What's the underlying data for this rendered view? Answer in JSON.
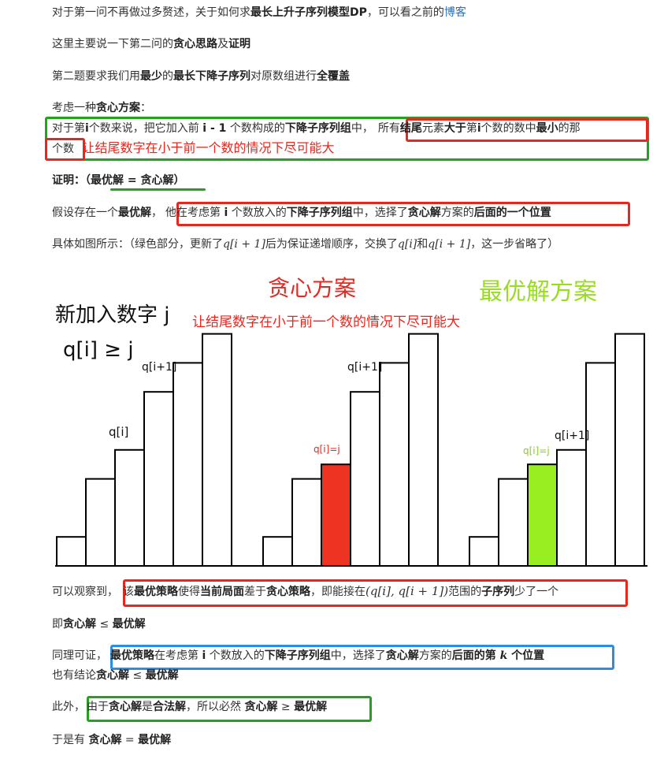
{
  "l1": {
    "a": "对于第一问不再做过多赘述，关于如何求",
    "b": "最长上升子序列模型DP",
    "c": "，可以看之前的",
    "link": "博客"
  },
  "l2": {
    "a": "这里主要说一下第二问的",
    "b": "贪心思路",
    "c": "及",
    "d": "证明"
  },
  "l3": {
    "a": "第二题要求我们用",
    "b": "最少",
    "c": "的",
    "d": "最长下降子序列",
    "e": "对原数组进行",
    "f": "全覆盖"
  },
  "l4": {
    "a": "考虑一种",
    "b": "贪心方案",
    "c": "："
  },
  "l5": {
    "a": "对于第",
    "b": "i",
    "c": "个数来说，把它加入前 ",
    "d": "i - 1",
    "e": " 个数构成的",
    "f": "下降子序列组",
    "g": "中，",
    "h": "所有",
    "i": "结尾",
    "j": "元素",
    "k": "大于",
    "l": "第",
    "m": "i",
    "n": "个数的数中",
    "o": "最小",
    "p": "的那"
  },
  "l6": {
    "a": "个数",
    "note": "让结尾数字在小于前一个数的情况下尽可能大"
  },
  "l7": {
    "a": "证明：（最优解 = ",
    "b": "贪心解",
    "c": "）"
  },
  "l8": {
    "a": "假设存在一个",
    "b": "最优解",
    "c": "，",
    "d": "他在考虑第 ",
    "e": "i",
    "f": " 个数放入的",
    "g": "下降子序列组",
    "h": "中，选择了",
    "i": "贪心解",
    "j": "方案的",
    "k": "后面的一个位置"
  },
  "l9": {
    "a": "具体如图所示：（绿色部分，更新了",
    "m1": "q[i + 1]",
    "b": "后为保证递增顺序，交换了",
    "m2": "q[i]",
    "c": "和",
    "m3": "q[i + 1]",
    "d": "，这一步省略了）"
  },
  "figure": {
    "title_greedy": "贪心方案",
    "title_optimal": "最优解方案",
    "subtitle": "让结尾数字在小于前一个数的情况下尽可能大",
    "left_note1": "新加入数字 j",
    "left_note2": "q[i] ≥ j",
    "g1_label_qi": "q[i]",
    "g1_label_qi1": "q[i+1]",
    "g2_label_qij": "q[i]=j",
    "g2_label_qi1": "q[i+1]",
    "g3_label_qij": "q[i]=j",
    "g3_label_qi1": "q[i+1]",
    "colors": {
      "greedy": "#ee3322",
      "optimal": "#99ee22"
    },
    "groups": [
      {
        "heights": [
          1,
          3,
          4,
          6,
          7,
          8
        ],
        "highlight": -1
      },
      {
        "heights": [
          1,
          3,
          3.5,
          6,
          7,
          8
        ],
        "highlight": 2
      },
      {
        "heights": [
          1,
          3,
          3.5,
          4,
          7,
          8
        ],
        "highlight": 2
      }
    ]
  },
  "l10": {
    "a": "可以观察到，",
    "b": "该",
    "c": "最优策略",
    "d": "使得",
    "e": "当前局面",
    "f": "差于",
    "g": "贪心策略",
    "h": "，即能接在",
    "m": "(q[i], q[i + 1])",
    "i": "范围的",
    "j": "子序列",
    "k": "少了一个"
  },
  "l11": {
    "a": "即",
    "b": "贪心解",
    "c": " ≤ ",
    "d": "最优解"
  },
  "l12": {
    "a": "同理可证，",
    "b": "最优策略",
    "c": "在考虑第 ",
    "d": "i",
    "e": " 个数放入的",
    "f": "下降子序列组",
    "g": "中，选择了",
    "h": "贪心解",
    "i": "方案的",
    "j": "后面的第 ",
    "k": "k",
    "l": " 个位置"
  },
  "l13": {
    "a": "也有结论",
    "b": "贪心解",
    "c": " ≤ ",
    "d": "最优解"
  },
  "l14": {
    "a": "此外，",
    "b": "由于",
    "c": "贪心解",
    "d": "是",
    "e": "合法解",
    "f": "，所以必然 ",
    "g": "贪心解",
    "h": " ≥ ",
    "i": "最优解"
  },
  "l15": {
    "a": "于是有 ",
    "b": "贪心解",
    "c": " = ",
    "d": "最优解"
  }
}
